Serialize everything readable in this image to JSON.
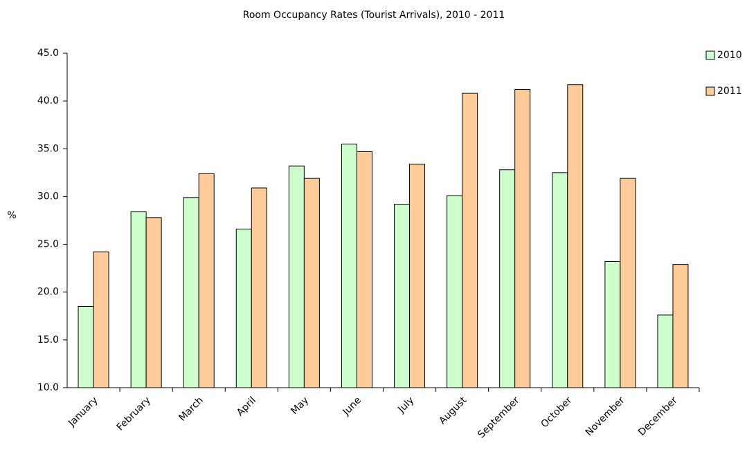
{
  "chart_data": {
    "type": "bar",
    "title": "Room Occupancy Rates (Tourist Arrivals), 2010 - 2011",
    "y_label": "%",
    "categories": [
      "January",
      "February",
      "March",
      "April",
      "May",
      "June",
      "July",
      "August",
      "September",
      "October",
      "November",
      "December"
    ],
    "series": [
      {
        "name": "2010",
        "color": "#ccffcc",
        "values": [
          18.5,
          28.4,
          29.9,
          26.6,
          33.2,
          35.5,
          29.2,
          30.1,
          32.8,
          32.5,
          23.2,
          17.6
        ]
      },
      {
        "name": "2011",
        "color": "#ffcc99",
        "values": [
          24.2,
          27.8,
          32.4,
          30.9,
          31.9,
          34.7,
          33.4,
          40.8,
          41.2,
          41.7,
          31.9,
          22.9
        ]
      }
    ],
    "ylim": [
      10,
      45
    ],
    "yticks": [
      {
        "value": 10,
        "label": "10.0"
      },
      {
        "value": 15,
        "label": "15.0"
      },
      {
        "value": 20,
        "label": "20.0"
      },
      {
        "value": 25,
        "label": "25.0"
      },
      {
        "value": 30,
        "label": "30.0"
      },
      {
        "value": 35,
        "label": "35.0"
      },
      {
        "value": 40,
        "label": "40.0"
      },
      {
        "value": 45,
        "label": "45.0"
      }
    ],
    "grid": false,
    "legend": "top-right"
  }
}
